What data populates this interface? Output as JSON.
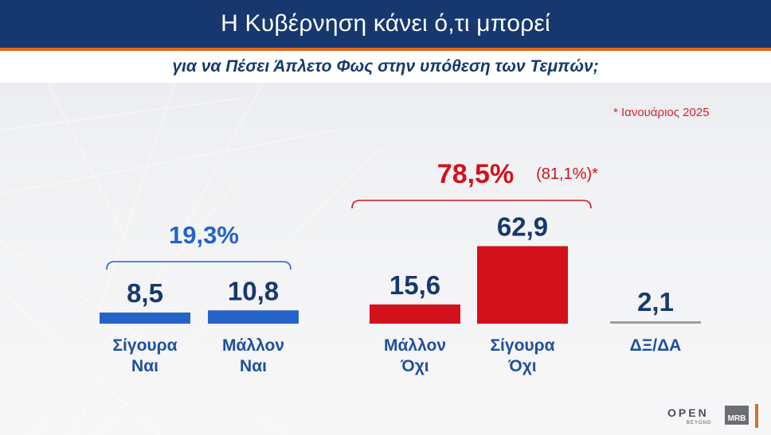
{
  "header": {
    "title": "Η Κυβέρνηση κάνει ό,τι μπορεί",
    "subtitle": "για να Πέσει Άπλετο Φως στην υπόθεση των Τεμπών;"
  },
  "note": "* Ιανουάριος 2025",
  "colors": {
    "yes": "#2563c9",
    "no": "#d3111c",
    "neutral": "#9a9da3",
    "navy": "#17386f",
    "label": "#1f4f9e"
  },
  "chart_data": {
    "type": "bar",
    "title": "Η Κυβέρνηση κάνει ό,τι μπορεί για να Πέσει Άπλετο Φως στην υπόθεση των Τεμπών;",
    "categories": [
      "Σίγουρα Ναι",
      "Μάλλον Ναι",
      "Μάλλον Όχι",
      "Σίγουρα Όχι",
      "ΔΞ/ΔΑ"
    ],
    "value_labels": [
      "8,5",
      "10,8",
      "15,6",
      "62,9",
      "2,1"
    ],
    "values": [
      8.5,
      10.8,
      15.6,
      62.9,
      2.1
    ],
    "groups": [
      {
        "label": "19,3%",
        "members": [
          "Σίγουρα Ναι",
          "Μάλλον Ναι"
        ],
        "value": 19.3
      },
      {
        "label": "78,5%",
        "previous_label": "(81,1%)*",
        "members": [
          "Μάλλον Όχι",
          "Σίγουρα Όχι"
        ],
        "value": 78.5,
        "previous_value": 81.1
      }
    ],
    "grid": false,
    "legend": "none"
  },
  "branding": {
    "open": "OPEN",
    "beyond": "BEYOND",
    "mrb": "MRB"
  }
}
